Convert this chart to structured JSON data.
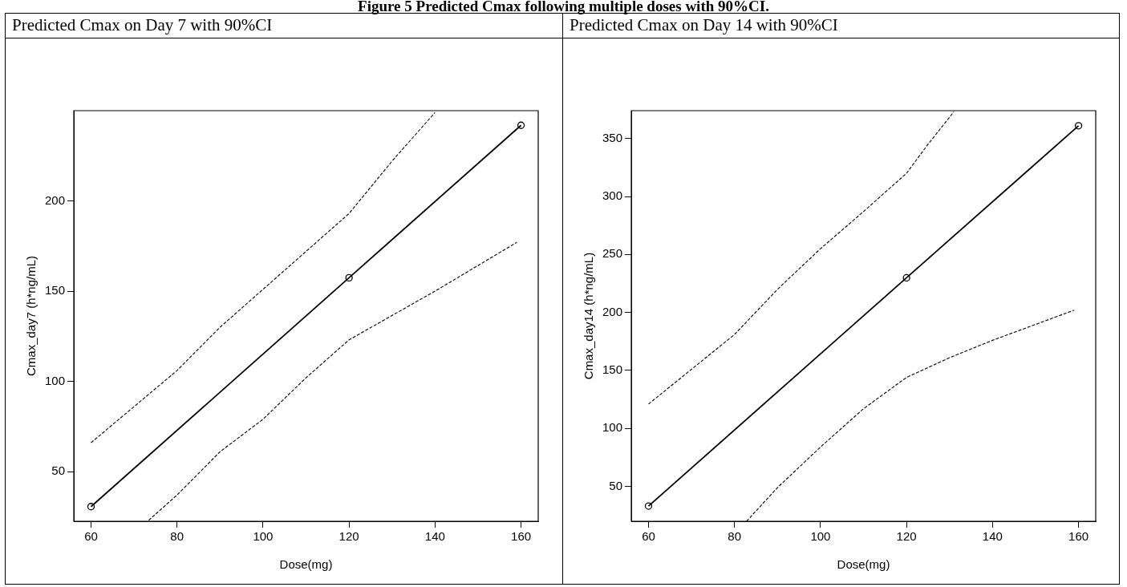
{
  "chart_data": [
    {
      "type": "line",
      "title": "Predicted Cmax on Day 7 with 90%CI",
      "xlabel": "Dose(mg)",
      "ylabel": "Cmax_day7 (h*ng/mL)",
      "annotations": [
        "Figure 5  Predicted Cmax following multiple doses with 90%CI."
      ],
      "xlim": [
        56,
        164
      ],
      "xticks": [
        60,
        80,
        100,
        120,
        140,
        160
      ],
      "ylim": [
        22.5,
        250
      ],
      "yticks": [
        50,
        100,
        150,
        200
      ],
      "series": [
        {
          "color": "#000000",
          "marker": "circle",
          "line_style": "solid",
          "x": [
            60,
            120,
            160
          ],
          "values": [
            30.6,
            157.4,
            241.9
          ]
        },
        {
          "color": "#000000",
          "marker": "none",
          "line_style": "dashed",
          "x": [
            60,
            80,
            90,
            100,
            110,
            120,
            130,
            140
          ],
          "values": [
            66,
            106,
            130,
            151,
            172,
            193,
            222,
            249
          ]
        },
        {
          "color": "#000000",
          "marker": "none",
          "line_style": "dashed",
          "x": [
            73.4,
            80,
            90,
            100,
            110,
            120,
            140,
            159
          ],
          "values": [
            23,
            37,
            61,
            79,
            102,
            123,
            150,
            177
          ]
        }
      ]
    },
    {
      "type": "line",
      "title": "Predicted Cmax on Day 14 with 90%CI",
      "xlabel": "Dose(mg)",
      "ylabel": "Cmax_day14 (h*ng/mL)",
      "xlim": [
        56,
        164
      ],
      "xticks": [
        60,
        80,
        100,
        120,
        140,
        160
      ],
      "ylim": [
        20,
        374
      ],
      "yticks": [
        50,
        100,
        150,
        200,
        250,
        300,
        350
      ],
      "series": [
        {
          "color": "#000000",
          "marker": "circle",
          "line_style": "solid",
          "x": [
            60,
            120,
            160
          ],
          "values": [
            33.1,
            229.9,
            361
          ]
        },
        {
          "color": "#000000",
          "marker": "none",
          "line_style": "dashed",
          "x": [
            60,
            80,
            90,
            100,
            110,
            120,
            125,
            131
          ],
          "values": [
            121,
            181,
            220,
            255,
            287,
            320,
            345,
            373
          ]
        },
        {
          "color": "#000000",
          "marker": "none",
          "line_style": "dashed",
          "x": [
            82.8,
            90,
            100,
            110,
            120,
            130,
            140,
            159
          ],
          "values": [
            20,
            49,
            84,
            117,
            144,
            161,
            176,
            202
          ]
        }
      ]
    }
  ]
}
